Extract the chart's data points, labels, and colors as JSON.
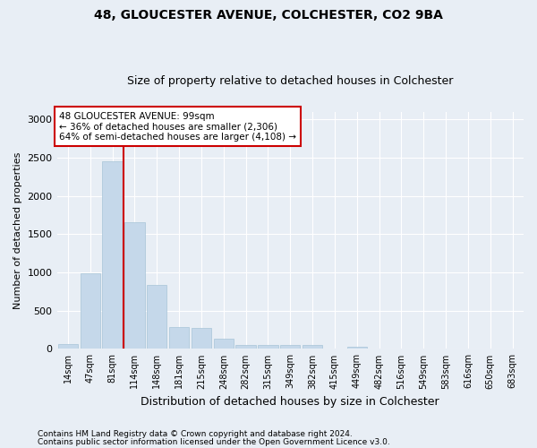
{
  "title1": "48, GLOUCESTER AVENUE, COLCHESTER, CO2 9BA",
  "title2": "Size of property relative to detached houses in Colchester",
  "xlabel": "Distribution of detached houses by size in Colchester",
  "ylabel": "Number of detached properties",
  "categories": [
    "14sqm",
    "47sqm",
    "81sqm",
    "114sqm",
    "148sqm",
    "181sqm",
    "215sqm",
    "248sqm",
    "282sqm",
    "315sqm",
    "349sqm",
    "382sqm",
    "415sqm",
    "449sqm",
    "482sqm",
    "516sqm",
    "549sqm",
    "583sqm",
    "616sqm",
    "650sqm",
    "683sqm"
  ],
  "values": [
    60,
    990,
    2450,
    1650,
    840,
    290,
    270,
    130,
    55,
    50,
    50,
    50,
    0,
    30,
    0,
    0,
    0,
    0,
    0,
    0,
    0
  ],
  "bar_color": "#c5d8ea",
  "bar_edgecolor": "#a8c4d8",
  "vline_color": "#cc0000",
  "annotation_text": "48 GLOUCESTER AVENUE: 99sqm\n← 36% of detached houses are smaller (2,306)\n64% of semi-detached houses are larger (4,108) →",
  "annotation_box_edgecolor": "#cc0000",
  "annotation_fill": "white",
  "ylim": [
    0,
    3100
  ],
  "yticks": [
    0,
    500,
    1000,
    1500,
    2000,
    2500,
    3000
  ],
  "footer1": "Contains HM Land Registry data © Crown copyright and database right 2024.",
  "footer2": "Contains public sector information licensed under the Open Government Licence v3.0.",
  "bg_color": "#e8eef5",
  "plot_bg_color": "#e8eef5",
  "grid_color": "#ffffff",
  "title1_fontsize": 10,
  "title2_fontsize": 9
}
